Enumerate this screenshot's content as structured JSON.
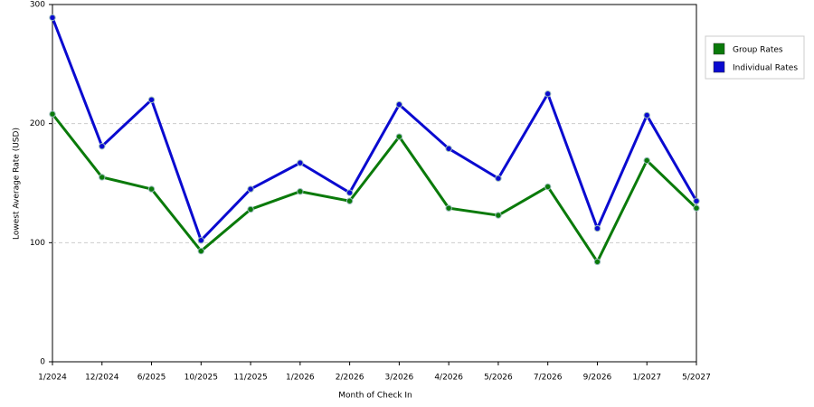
{
  "chart_data": {
    "type": "line",
    "categories": [
      "1/2024",
      "12/2024",
      "6/2025",
      "10/2025",
      "11/2025",
      "1/2026",
      "2/2026",
      "3/2026",
      "4/2026",
      "5/2026",
      "7/2026",
      "9/2026",
      "1/2027",
      "5/2027"
    ],
    "series": [
      {
        "name": "Group Rates",
        "color": "#0a7a0a",
        "values": [
          208,
          155,
          145,
          93,
          128,
          143,
          135,
          189,
          129,
          123,
          147,
          84,
          169,
          129
        ]
      },
      {
        "name": "Individual Rates",
        "color": "#0a0ad0",
        "values": [
          289,
          181,
          220,
          102,
          145,
          167,
          142,
          216,
          179,
          154,
          225,
          112,
          207,
          135
        ]
      }
    ],
    "x_label": "Month of Check In",
    "y_label": "Lowest Average Rate (USD)",
    "ylim": [
      0,
      300
    ],
    "yticks": [
      0,
      100,
      200,
      300
    ],
    "grid": true,
    "legend": "right"
  }
}
